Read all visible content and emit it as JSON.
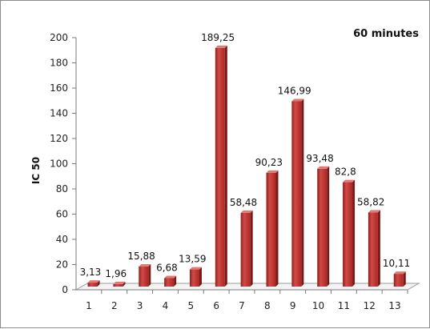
{
  "chart_data": {
    "type": "bar",
    "title": "60 minutes",
    "xlabel": "",
    "ylabel": "IC 50",
    "ylim": [
      0,
      200
    ],
    "yticks": [
      0,
      20,
      40,
      60,
      80,
      100,
      120,
      140,
      160,
      180,
      200
    ],
    "categories": [
      "1",
      "2",
      "3",
      "4",
      "5",
      "6",
      "7",
      "8",
      "9",
      "10",
      "11",
      "12",
      "13"
    ],
    "values": [
      3.13,
      1.96,
      15.88,
      6.68,
      13.59,
      189.25,
      58.48,
      90.23,
      146.99,
      93.48,
      82.8,
      58.82,
      10.11
    ],
    "data_labels": [
      "3,13",
      "1,96",
      "15,88",
      "6,68",
      "13,59",
      "189,25",
      "58,48",
      "90,23",
      "146,99",
      "93,48",
      "82,8",
      "58,82",
      "10,11"
    ],
    "bar_color": "#c0312f",
    "grid": false,
    "legend": "none"
  }
}
